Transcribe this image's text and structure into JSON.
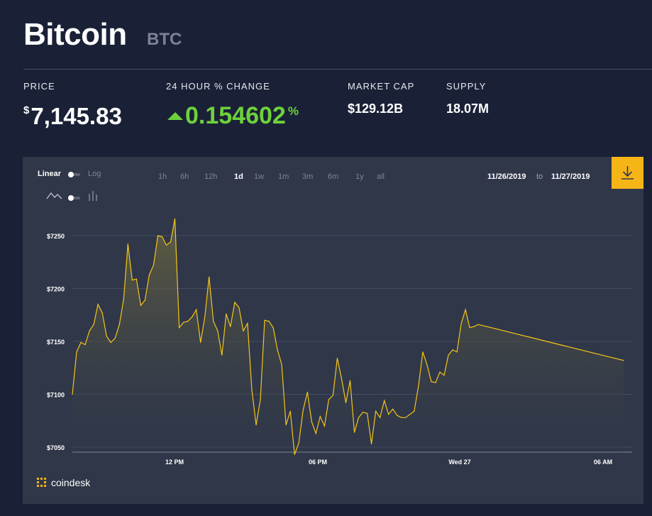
{
  "header": {
    "name": "Bitcoin",
    "symbol": "BTC"
  },
  "stats": {
    "price_label": "PRICE",
    "price_currency": "$",
    "price_value": "7,145.83",
    "change_label": "24 HOUR % CHANGE",
    "change_value": "0.154602",
    "change_unit": "%",
    "change_direction": "up",
    "market_cap_label": "MARKET CAP",
    "market_cap_value": "$129.12B",
    "supply_label": "SUPPLY",
    "supply_value": "18.07M"
  },
  "controls": {
    "scale_linear": "Linear",
    "scale_log": "Log",
    "ranges": [
      "1h",
      "6h",
      "12h",
      "1d",
      "1w",
      "1m",
      "3m",
      "6m",
      "1y",
      "all"
    ],
    "active_range": "1d",
    "date_from": "11/26/2019",
    "date_sep": "to",
    "date_to": "11/27/2019",
    "chart_style": "line"
  },
  "brand": {
    "logo_text": "coindesk"
  },
  "colors": {
    "background": "#1a2137",
    "chart_bg": "#2f3749",
    "line": "#f5c518",
    "positive": "#6ed13b",
    "download_button": "#f5b517"
  },
  "chart_data": {
    "type": "area",
    "y_ticks": [
      "$7050",
      "$7100",
      "$7150",
      "$7200",
      "$7250"
    ],
    "x_ticks": [
      "12 PM",
      "06 PM",
      "Wed 27",
      "06 AM"
    ],
    "ylim": [
      7040,
      7275
    ],
    "x_hours_since_start": [
      0,
      0.18,
      0.36,
      0.54,
      0.72,
      0.9,
      1.08,
      1.26,
      1.44,
      1.62,
      1.8,
      1.98,
      2.16,
      2.34,
      2.52,
      2.7,
      2.88,
      3.06,
      3.24,
      3.42,
      3.6,
      3.78,
      3.96,
      4.14,
      4.32,
      4.5,
      4.68,
      4.86,
      5.04,
      5.22,
      5.4,
      5.58,
      5.76,
      5.94,
      6.12,
      6.3,
      6.48,
      6.66,
      6.84,
      7.02,
      7.2,
      7.38,
      7.56,
      7.74,
      7.92,
      8.1,
      8.28,
      8.46,
      8.64,
      8.82,
      9,
      9.18,
      9.36,
      9.54,
      9.72,
      9.9,
      10.08,
      10.26,
      10.44,
      10.62,
      10.8,
      10.98,
      11.16,
      11.34,
      11.52,
      11.7,
      11.88,
      12.06,
      12.24,
      12.42,
      12.6,
      12.78,
      12.96,
      13.14,
      13.32,
      13.5,
      13.68,
      13.86,
      14.04,
      14.22,
      14.4,
      14.58,
      14.76,
      14.94,
      15.12,
      15.3,
      15.48,
      15.66,
      15.84,
      16.02,
      16.2,
      16.38,
      16.56,
      16.74,
      16.92,
      17.1,
      17.28,
      17.46,
      17.64,
      17.82,
      18,
      18.18,
      18.36,
      18.54,
      18.72,
      18.9,
      19.08,
      19.26,
      19.44,
      19.62,
      19.8,
      19.98,
      20.16,
      20.34,
      20.52,
      20.7,
      20.88,
      21.06,
      21.24,
      21.42,
      21.6,
      21.78,
      21.96,
      22.14,
      22.32,
      22.5,
      22.68,
      22.86,
      23.04,
      23.22,
      23.4,
      23.58
    ],
    "values": [
      7100,
      7140,
      7149,
      7147,
      7160,
      7166,
      7185,
      7177,
      7155,
      7149,
      7153,
      7166,
      7190,
      7242,
      7208,
      7209,
      7184,
      7189,
      7213,
      7222,
      7250,
      7249,
      7241,
      7244,
      7266,
      7163,
      7168,
      7169,
      7173,
      7180,
      7149,
      7173,
      7211,
      7169,
      7160,
      7137,
      7176,
      7164,
      7187,
      7182,
      7160,
      7167,
      7104,
      7071,
      7095,
      7170,
      7169,
      7163,
      7142,
      7128,
      7071,
      7084,
      7043,
      7054,
      7085,
      7102,
      7074,
      7063,
      7079,
      7070,
      7095,
      7099,
      7134,
      7115,
      7092,
      7113,
      7064,
      7078,
      7083,
      7082,
      7053,
      7084,
      7078,
      7094,
      7081,
      7086,
      7080,
      7078,
      7078,
      7081,
      7084,
      7108,
      7140,
      7128,
      7112,
      7111,
      7121,
      7118,
      7137,
      7142,
      7140,
      7167,
      7180,
      7163,
      7164,
      7166,
      7165,
      7164,
      7163,
      7162,
      7161,
      7160,
      7159,
      7158,
      7157,
      7156,
      7155,
      7154,
      7153,
      7152,
      7151,
      7150,
      7149,
      7148,
      7147,
      7146,
      7145,
      7144,
      7143,
      7142,
      7141,
      7140,
      7139,
      7138,
      7137,
      7136,
      7135,
      7134,
      7133,
      7132
    ]
  }
}
